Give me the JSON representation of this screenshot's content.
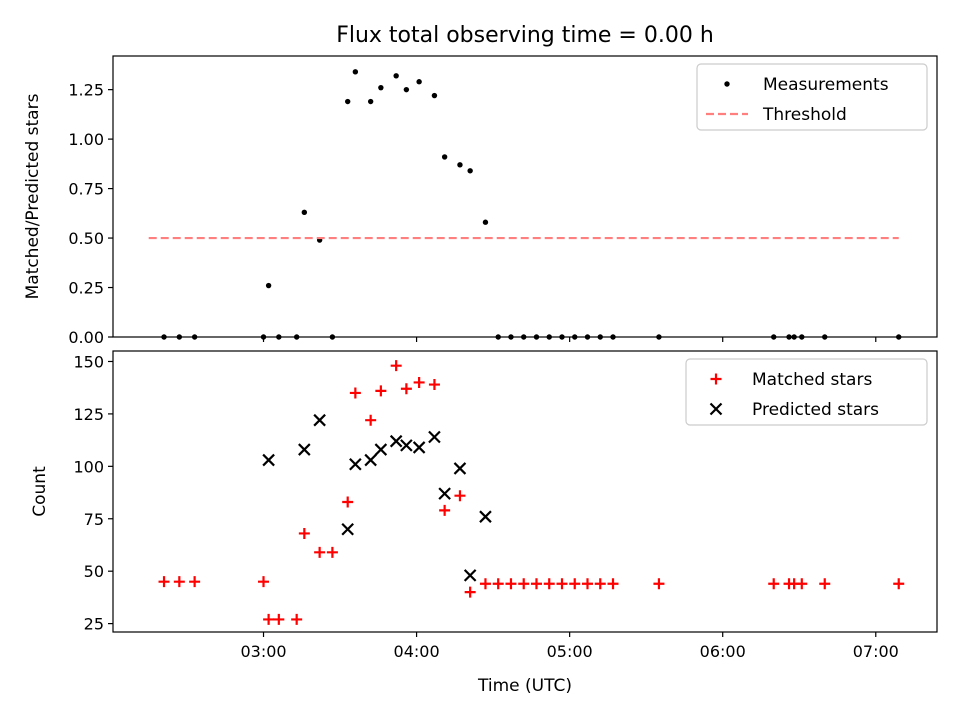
{
  "title": "Flux total observing time = 0.00 h",
  "chart_data": [
    {
      "type": "scatter",
      "title": "Flux total observing time = 0.00 h",
      "ylabel": "Matched/Predicted stars",
      "xlabel": "",
      "xlim": [
        "02:01",
        "07:24"
      ],
      "ylim": [
        0,
        1.42
      ],
      "x_ticks": [
        "03:00",
        "04:00",
        "05:00",
        "06:00",
        "07:00"
      ],
      "y_ticks": [
        "0.00",
        "0.25",
        "0.50",
        "0.75",
        "1.00",
        "1.25"
      ],
      "y_tick_values": [
        0,
        0.25,
        0.5,
        0.75,
        1.0,
        1.25
      ],
      "legend_position": "upper right",
      "series": [
        {
          "name": "Measurements",
          "kind": "points",
          "color": "#000000",
          "points": [
            [
              "02:21",
              0
            ],
            [
              "02:27",
              0
            ],
            [
              "02:33",
              0
            ],
            [
              "03:00",
              0
            ],
            [
              "03:02",
              0.26
            ],
            [
              "03:06",
              0
            ],
            [
              "03:13",
              0
            ],
            [
              "03:16",
              0.63
            ],
            [
              "03:22",
              0.49
            ],
            [
              "03:27",
              0
            ],
            [
              "03:33",
              1.19
            ],
            [
              "03:36",
              1.34
            ],
            [
              "03:42",
              1.19
            ],
            [
              "03:46",
              1.26
            ],
            [
              "03:52",
              1.32
            ],
            [
              "03:56",
              1.25
            ],
            [
              "04:01",
              1.29
            ],
            [
              "04:07",
              1.22
            ],
            [
              "04:11",
              0.91
            ],
            [
              "04:17",
              0.87
            ],
            [
              "04:21",
              0.84
            ],
            [
              "04:27",
              0.58
            ],
            [
              "04:32",
              0
            ],
            [
              "04:37",
              0
            ],
            [
              "04:42",
              0
            ],
            [
              "04:47",
              0
            ],
            [
              "04:52",
              0
            ],
            [
              "04:57",
              0
            ],
            [
              "05:02",
              0
            ],
            [
              "05:07",
              0
            ],
            [
              "05:12",
              0
            ],
            [
              "05:17",
              0
            ],
            [
              "05:35",
              0
            ],
            [
              "06:20",
              0
            ],
            [
              "06:26",
              0
            ],
            [
              "06:28",
              0
            ],
            [
              "06:31",
              0
            ],
            [
              "06:40",
              0
            ],
            [
              "07:09",
              0
            ]
          ]
        },
        {
          "name": "Threshold",
          "kind": "dashed-line",
          "color": "#ff7f7f",
          "points": [
            [
              "02:15",
              0.5
            ],
            [
              "07:09",
              0.5
            ]
          ]
        }
      ]
    },
    {
      "type": "scatter",
      "title": "",
      "xlabel": "Time (UTC)",
      "ylabel": "Count",
      "xlim": [
        "02:01",
        "07:24"
      ],
      "ylim": [
        21,
        155
      ],
      "x_ticks": [
        "03:00",
        "04:00",
        "05:00",
        "06:00",
        "07:00"
      ],
      "y_ticks": [
        "25",
        "50",
        "75",
        "100",
        "125",
        "150"
      ],
      "y_tick_values": [
        25,
        50,
        75,
        100,
        125,
        150
      ],
      "legend_position": "upper right",
      "series": [
        {
          "name": "Matched stars",
          "marker": "plus",
          "color": "#ff0000",
          "points": [
            [
              "02:21",
              45
            ],
            [
              "02:27",
              45
            ],
            [
              "02:33",
              45
            ],
            [
              "03:00",
              45
            ],
            [
              "03:02",
              27
            ],
            [
              "03:06",
              27
            ],
            [
              "03:13",
              27
            ],
            [
              "03:16",
              68
            ],
            [
              "03:22",
              59
            ],
            [
              "03:27",
              59
            ],
            [
              "03:33",
              83
            ],
            [
              "03:36",
              135
            ],
            [
              "03:42",
              122
            ],
            [
              "03:46",
              136
            ],
            [
              "03:52",
              148
            ],
            [
              "03:56",
              137
            ],
            [
              "04:01",
              140
            ],
            [
              "04:07",
              139
            ],
            [
              "04:11",
              79
            ],
            [
              "04:17",
              86
            ],
            [
              "04:21",
              40
            ],
            [
              "04:27",
              44
            ],
            [
              "04:32",
              44
            ],
            [
              "04:37",
              44
            ],
            [
              "04:42",
              44
            ],
            [
              "04:47",
              44
            ],
            [
              "04:52",
              44
            ],
            [
              "04:57",
              44
            ],
            [
              "05:02",
              44
            ],
            [
              "05:07",
              44
            ],
            [
              "05:12",
              44
            ],
            [
              "05:17",
              44
            ],
            [
              "05:35",
              44
            ],
            [
              "06:20",
              44
            ],
            [
              "06:26",
              44
            ],
            [
              "06:28",
              44
            ],
            [
              "06:31",
              44
            ],
            [
              "06:40",
              44
            ],
            [
              "07:09",
              44
            ]
          ]
        },
        {
          "name": "Predicted stars",
          "marker": "x",
          "color": "#000000",
          "points": [
            [
              "03:02",
              103
            ],
            [
              "03:16",
              108
            ],
            [
              "03:22",
              122
            ],
            [
              "03:33",
              70
            ],
            [
              "03:36",
              101
            ],
            [
              "03:42",
              103
            ],
            [
              "03:46",
              108
            ],
            [
              "03:52",
              112
            ],
            [
              "03:56",
              110
            ],
            [
              "04:01",
              109
            ],
            [
              "04:07",
              114
            ],
            [
              "04:11",
              87
            ],
            [
              "04:17",
              99
            ],
            [
              "04:21",
              48
            ],
            [
              "04:27",
              76
            ]
          ]
        }
      ]
    }
  ]
}
